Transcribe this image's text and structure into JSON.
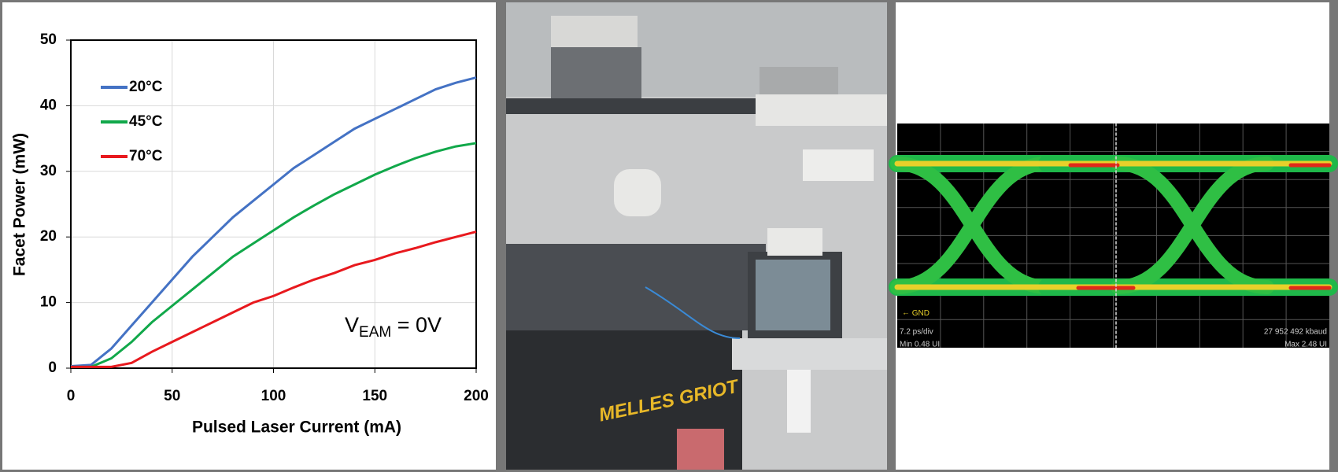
{
  "chart_data": {
    "type": "line",
    "xlabel": "Pulsed Laser Current (mA)",
    "ylabel": "Facet Power (mW)",
    "annotation": {
      "main": "V",
      "sub": "EAM",
      "rest": " = 0V"
    },
    "x": [
      0,
      10,
      20,
      30,
      40,
      50,
      60,
      70,
      80,
      90,
      100,
      110,
      120,
      130,
      140,
      150,
      160,
      170,
      180,
      190,
      200
    ],
    "series": [
      {
        "name": "20°C",
        "color": "#4472c4",
        "values": [
          0.3,
          0.5,
          3,
          6.5,
          10,
          13.5,
          17,
          20,
          23,
          25.5,
          28,
          30.5,
          32.5,
          34.5,
          36.5,
          38,
          39.5,
          41,
          42.5,
          43.5,
          44.3
        ]
      },
      {
        "name": "45°C",
        "color": "#11a84a",
        "values": [
          0.2,
          0.2,
          1.5,
          4,
          7,
          9.5,
          12,
          14.5,
          17,
          19,
          21,
          23,
          24.8,
          26.5,
          28,
          29.5,
          30.8,
          32,
          33,
          33.8,
          34.3
        ]
      },
      {
        "name": "70°C",
        "color": "#e8191e",
        "values": [
          0.2,
          0.2,
          0.2,
          0.8,
          2.5,
          4,
          5.5,
          7,
          8.5,
          10,
          11,
          12.3,
          13.5,
          14.5,
          15.7,
          16.5,
          17.5,
          18.3,
          19.2,
          20,
          20.8
        ]
      }
    ],
    "xlim": [
      0,
      200
    ],
    "xticks": [
      0,
      50,
      100,
      150,
      200
    ],
    "ylim": [
      0,
      50
    ],
    "yticks": [
      0,
      10,
      20,
      30,
      40,
      50
    ],
    "grid": true,
    "legend": "upper-left"
  },
  "photo": {
    "text": "MELLES GRIOT"
  },
  "eye_diagram": {
    "ground": "GND",
    "scale": "7.2 ps/div",
    "rate": "27 952 492 kbaud",
    "min": "Min 0.48 UI",
    "max": "Max 2.48 UI"
  }
}
